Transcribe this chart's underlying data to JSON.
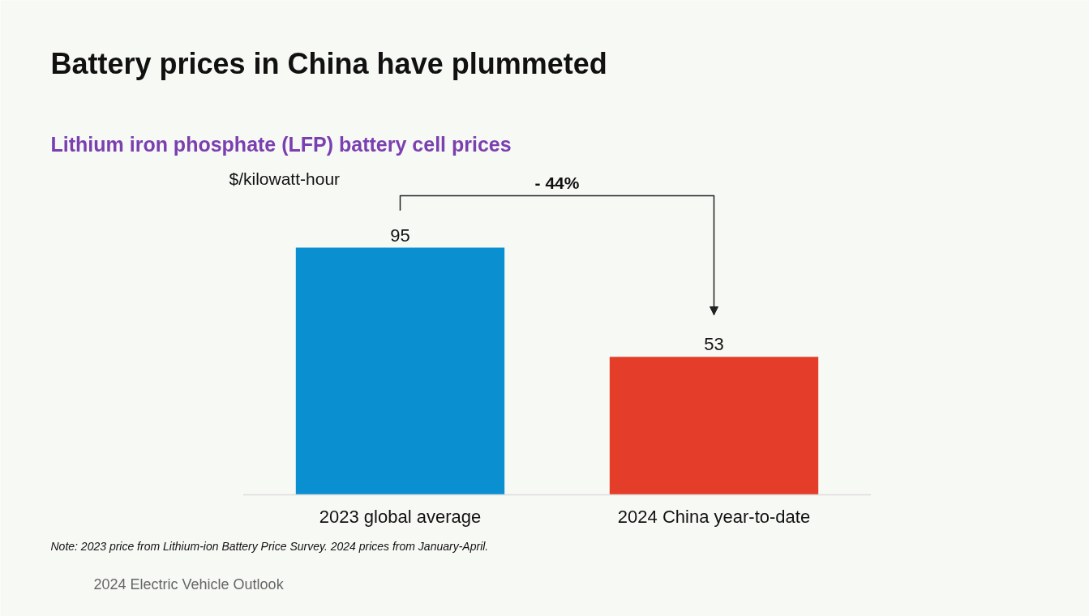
{
  "chart_data": {
    "type": "bar",
    "title": "Battery prices in China have plummeted",
    "subtitle": "Lithium iron phosphate (LFP) battery cell prices",
    "ylabel": "$/kilowatt-hour",
    "categories": [
      "2023 global average",
      "2024 China year-to-date"
    ],
    "values": [
      95,
      53
    ],
    "colors": [
      "#0a8fd0",
      "#e43d2a"
    ],
    "data_labels": true,
    "annotations": [
      "- 44%",
      "Note: 2023 price from Lithium-ion Battery Price Survey. 2024 prices from January-April.",
      "2024 Electric Vehicle Outlook"
    ]
  }
}
